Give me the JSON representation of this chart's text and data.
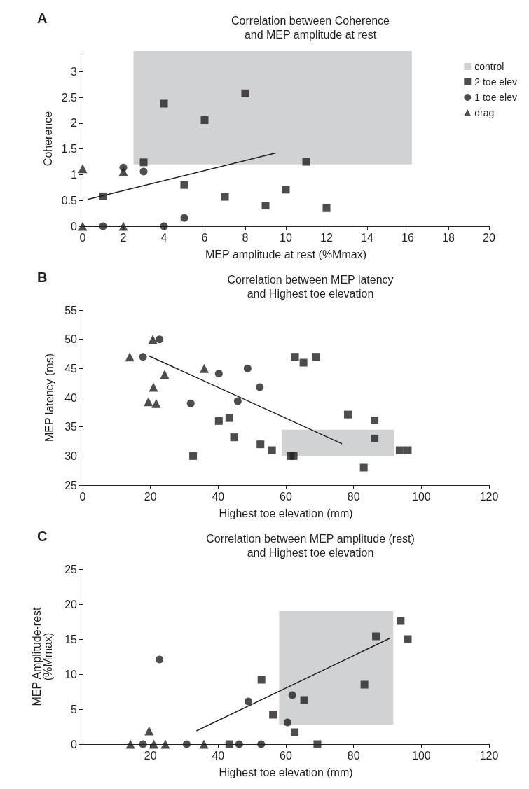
{
  "chart_data": [
    {
      "type": "scatter",
      "title": "Correlation between Coherence\nand MEP amplitude at rest",
      "annotations": [
        "A"
      ],
      "xlabel": "MEP amplitude at rest (%Mmax)",
      "ylabel": "Coherence",
      "xlim": [
        0,
        20
      ],
      "xticks": [
        0,
        2,
        4,
        6,
        8,
        10,
        12,
        14,
        16,
        18,
        20
      ],
      "ylim": [
        0,
        3.4
      ],
      "yticks": [
        0,
        0.5,
        1,
        1.5,
        2,
        2.5,
        3
      ],
      "legend": "right",
      "grid": false,
      "series": [
        {
          "name": "control",
          "type": "area",
          "color": "#d1d2d4",
          "x": [
            2.5,
            16.2
          ],
          "values": [
            null,
            null
          ],
          "lower": [
            1.2,
            1.2
          ],
          "upper": [
            3.4,
            3.4
          ]
        },
        {
          "name": "2 toe elev",
          "color": "#231f20",
          "marker": "square",
          "x": [
            1,
            3,
            4,
            5,
            6,
            7,
            8,
            9,
            10,
            11,
            12
          ],
          "values": [
            0.58,
            1.24,
            2.38,
            0.8,
            2.06,
            0.57,
            2.58,
            0.4,
            0.71,
            1.25,
            0.35
          ]
        },
        {
          "name": "1 toe elev",
          "color": "#231f20",
          "marker": "circle",
          "x": [
            1,
            2,
            3,
            4,
            5
          ],
          "values": [
            0,
            1.14,
            1.06,
            0,
            0.16
          ]
        },
        {
          "name": "drag",
          "color": "#231f20",
          "marker": "triangle",
          "x": [
            0,
            0,
            2,
            2
          ],
          "values": [
            0,
            1.12,
            0,
            1.06
          ]
        },
        {
          "type": "line",
          "color": "#231f20",
          "marker": "none",
          "x": [
            0.25,
            9.5
          ],
          "values": [
            0.52,
            1.42
          ]
        }
      ]
    },
    {
      "type": "scatter",
      "title": "Correlation between MEP latency\nand Highest toe elevation",
      "annotations": [
        "B"
      ],
      "xlabel": "Highest toe elevation (mm)",
      "ylabel": "MEP latency (ms)",
      "xlim": [
        0,
        120
      ],
      "xticks": [
        0,
        20,
        40,
        60,
        80,
        100,
        120
      ],
      "ylim": [
        25,
        55
      ],
      "yticks": [
        25,
        30,
        35,
        40,
        45,
        50,
        55
      ],
      "grid": false,
      "series": [
        {
          "type": "area",
          "color": "#d1d2d4",
          "x": [
            58.8,
            92
          ],
          "values": [
            null,
            null
          ],
          "lower": [
            30,
            30
          ],
          "upper": [
            34.5,
            34.5
          ]
        },
        {
          "color": "#231f20",
          "marker": "square",
          "x": [
            32.6,
            40.2,
            43.3,
            44.7,
            52.5,
            55.9,
            61.4,
            62.3,
            62.7,
            65.2,
            69,
            78.3,
            83,
            86.2,
            86.2,
            93.6,
            96
          ],
          "values": [
            30,
            36,
            36.5,
            33.2,
            32,
            31,
            30,
            30,
            47,
            46,
            47,
            37.1,
            28,
            36.1,
            33,
            31,
            31
          ]
        },
        {
          "color": "#231f20",
          "marker": "circle",
          "x": [
            17.8,
            22.7,
            31.9,
            40.2,
            45.8,
            48.7,
            52.3
          ],
          "values": [
            47,
            50,
            39,
            44.1,
            39.4,
            45,
            41.8
          ]
        },
        {
          "color": "#231f20",
          "marker": "triangle",
          "x": [
            13.9,
            20.7,
            24.2,
            20.9,
            19.4,
            21.7,
            35.9
          ],
          "values": [
            47,
            50,
            44,
            41.8,
            39.3,
            39,
            45
          ]
        },
        {
          "type": "line",
          "color": "#231f20",
          "marker": "none",
          "x": [
            19.4,
            76.6
          ],
          "values": [
            47.2,
            32.1
          ]
        }
      ]
    },
    {
      "type": "scatter",
      "title": "Correlation between MEP amplitude (rest)\nand Highest toe elevation",
      "annotations": [
        "C"
      ],
      "xlabel": "Highest toe elevation (mm)",
      "ylabel": "MEP Amplitude-rest\n(%Mmax)",
      "xlim": [
        0,
        120
      ],
      "xticks": [
        {
          "value": 0,
          "label": null
        },
        20,
        40,
        60,
        80,
        100,
        120
      ],
      "ylim": [
        0,
        25
      ],
      "yticks": [
        0,
        5,
        10,
        15,
        20,
        25
      ],
      "grid": false,
      "series": [
        {
          "type": "area",
          "color": "#d1d2d4",
          "x": [
            58,
            91.7
          ],
          "values": [
            null,
            null
          ],
          "lower": [
            2.8,
            2.8
          ],
          "upper": [
            19,
            19
          ]
        },
        {
          "color": "#231f20",
          "marker": "square",
          "x": [
            43.3,
            52.8,
            56.2,
            62.6,
            65.4,
            69.3,
            83.2,
            86.6,
            93.9,
            96
          ],
          "values": [
            0,
            9.2,
            4.2,
            1.7,
            6.3,
            0,
            8.5,
            15.4,
            17.6,
            15
          ]
        },
        {
          "color": "#231f20",
          "marker": "circle",
          "x": [
            17.8,
            22.7,
            30.7,
            46.2,
            52.7,
            48.9,
            60.5,
            61.9
          ],
          "values": [
            0,
            12.1,
            0,
            0,
            0,
            6.1,
            3.1,
            7
          ]
        },
        {
          "color": "#231f20",
          "marker": "triangle",
          "x": [
            14.1,
            19.6,
            21,
            24.4,
            35.8
          ],
          "values": [
            0,
            1.9,
            0,
            0,
            0
          ]
        },
        {
          "type": "line",
          "color": "#231f20",
          "marker": "none",
          "x": [
            33.6,
            90.6
          ],
          "values": [
            1.9,
            15.1
          ]
        }
      ]
    }
  ]
}
